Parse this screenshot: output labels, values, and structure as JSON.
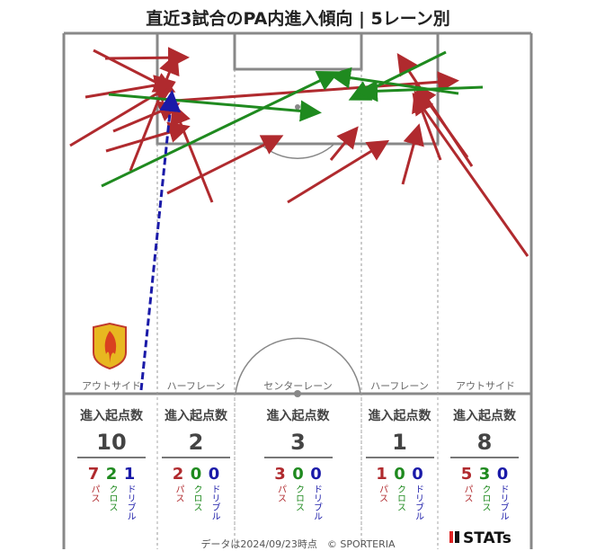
{
  "title": "直近3試合のPA内進入傾向 | 5レーン別",
  "lanes": [
    "アウトサイド",
    "ハーフレーン",
    "センターレーン",
    "ハーフレーン",
    "アウトサイド"
  ],
  "stats_header": "進入起点数",
  "breakdown_labels": {
    "pass": "パス",
    "cross": "クロス",
    "dribble": "ドリブル"
  },
  "stats": [
    {
      "total": "10",
      "pass": "7",
      "cross": "2",
      "dribble": "1"
    },
    {
      "total": "2",
      "pass": "2",
      "cross": "0",
      "dribble": "0"
    },
    {
      "total": "3",
      "pass": "3",
      "cross": "0",
      "dribble": "0"
    },
    {
      "total": "1",
      "pass": "1",
      "cross": "0",
      "dribble": "0"
    },
    {
      "total": "8",
      "pass": "5",
      "cross": "3",
      "dribble": "0"
    }
  ],
  "footer": "データは2024/09/23時点　© SPORTERIA",
  "brand": "STATs",
  "colors": {
    "pass": "#b02a2e",
    "cross": "#1f8a1f",
    "dribble": "#1a1aa8",
    "line": "#888888"
  },
  "icons": {
    "team_crest": "team-crest-icon",
    "brand_logo": "stats-logo-icon"
  }
}
